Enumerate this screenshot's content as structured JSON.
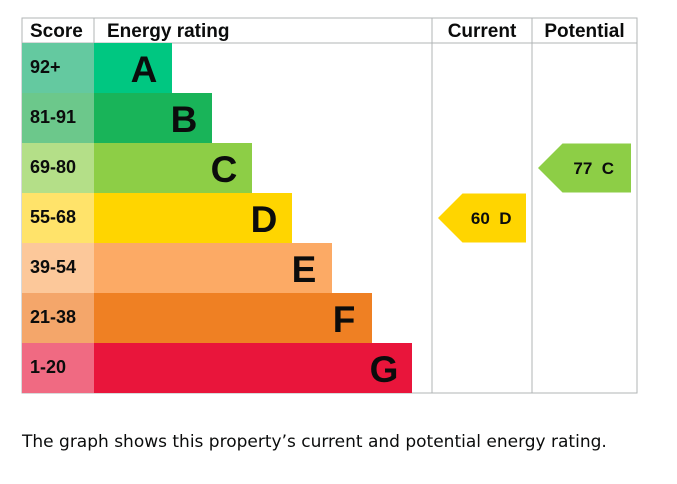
{
  "chart_data": {
    "type": "bar",
    "title": "",
    "header": {
      "score": "Score",
      "rating": "Energy rating",
      "current": "Current",
      "potential": "Potential"
    },
    "bands": [
      {
        "score": "92+",
        "letter": "A",
        "color": "#00c781",
        "score_bg": "#64c9a0"
      },
      {
        "score": "81-91",
        "letter": "B",
        "color": "#19b459",
        "score_bg": "#6cc88b"
      },
      {
        "score": "69-80",
        "letter": "C",
        "color": "#8dce46",
        "score_bg": "#b4df88"
      },
      {
        "score": "55-68",
        "letter": "D",
        "color": "#ffd500",
        "score_bg": "#ffe36a"
      },
      {
        "score": "39-54",
        "letter": "E",
        "color": "#fcaa65",
        "score_bg": "#fcc89a"
      },
      {
        "score": "21-38",
        "letter": "F",
        "color": "#ef8023",
        "score_bg": "#f4a66a"
      },
      {
        "score": "1-20",
        "letter": "G",
        "color": "#e9153b",
        "score_bg": "#f06a82"
      }
    ],
    "current": {
      "value": 60,
      "letter": "D",
      "label": "60  D",
      "color": "#ffd500"
    },
    "potential": {
      "value": 77,
      "letter": "C",
      "label": "77  C",
      "color": "#8dce46"
    }
  },
  "caption": "The graph shows this property’s current and potential energy rating."
}
